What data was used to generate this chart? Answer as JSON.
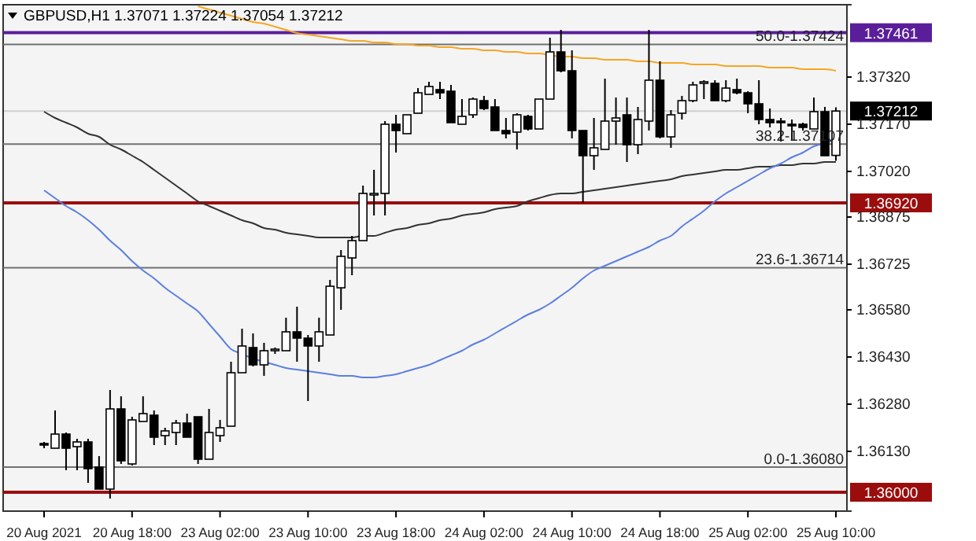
{
  "chart_data": {
    "type": "candlestick",
    "title": "GBPUSD,H1  1.37071 1.37224 1.37054 1.37212",
    "categories": [
      "20 Aug 2021",
      null,
      null,
      null,
      null,
      null,
      null,
      null,
      "20 Aug 18:00",
      null,
      null,
      null,
      null,
      null,
      null,
      null,
      "23 Aug 02:00",
      null,
      null,
      null,
      null,
      null,
      null,
      null,
      "23 Aug 10:00",
      null,
      null,
      null,
      null,
      null,
      null,
      null,
      "23 Aug 18:00",
      null,
      null,
      null,
      null,
      null,
      null,
      null,
      "24 Aug 02:00",
      null,
      null,
      null,
      null,
      null,
      null,
      null,
      "24 Aug 10:00",
      null,
      null,
      null,
      null,
      null,
      null,
      null,
      "24 Aug 18:00",
      null,
      null,
      null,
      null,
      null,
      null,
      null,
      "25 Aug 02:00",
      null,
      null,
      null,
      null,
      null,
      null,
      null,
      "25 Aug 10:00"
    ],
    "ohlc": [
      [
        1.36155,
        1.3616,
        1.3614,
        1.3615
      ],
      [
        1.3614,
        1.3626,
        1.3614,
        1.36185
      ],
      [
        1.36185,
        1.3619,
        1.3607,
        1.3614
      ],
      [
        1.36145,
        1.3617,
        1.3607,
        1.3616
      ],
      [
        1.3616,
        1.3617,
        1.3603,
        1.36075
      ],
      [
        1.3608,
        1.36115,
        1.3601,
        1.3601
      ],
      [
        1.3601,
        1.36325,
        1.3598,
        1.36265
      ],
      [
        1.36265,
        1.36305,
        1.3609,
        1.361
      ],
      [
        1.3609,
        1.3624,
        1.36085,
        1.3623
      ],
      [
        1.36225,
        1.36305,
        1.36225,
        1.3625
      ],
      [
        1.36245,
        1.3626,
        1.3615,
        1.36175
      ],
      [
        1.3618,
        1.36205,
        1.3615,
        1.36195
      ],
      [
        1.3619,
        1.3623,
        1.3615,
        1.3622
      ],
      [
        1.3622,
        1.3625,
        1.36175,
        1.36175
      ],
      [
        1.3624,
        1.3624,
        1.3609,
        1.36105
      ],
      [
        1.36105,
        1.36265,
        1.36105,
        1.3619
      ],
      [
        1.3618,
        1.3623,
        1.3616,
        1.36205
      ],
      [
        1.3621,
        1.36415,
        1.3621,
        1.3638
      ],
      [
        1.3638,
        1.3652,
        1.3638,
        1.36465
      ],
      [
        1.3646,
        1.36505,
        1.364,
        1.36405
      ],
      [
        1.36405,
        1.36475,
        1.3637,
        1.3645
      ],
      [
        1.3645,
        1.3646,
        1.3644,
        1.36455
      ],
      [
        1.3645,
        1.36555,
        1.3645,
        1.3651
      ],
      [
        1.3651,
        1.3659,
        1.36415,
        1.3649
      ],
      [
        1.3649,
        1.365,
        1.3629,
        1.36465
      ],
      [
        1.36465,
        1.36555,
        1.36415,
        1.3651
      ],
      [
        1.365,
        1.36675,
        1.365,
        1.36655
      ],
      [
        1.3665,
        1.3677,
        1.3658,
        1.3675
      ],
      [
        1.36745,
        1.36815,
        1.3669,
        1.368
      ],
      [
        1.368,
        1.36975,
        1.368,
        1.3695
      ],
      [
        1.36945,
        1.37025,
        1.3688,
        1.3695
      ],
      [
        1.3695,
        1.3718,
        1.3688,
        1.3717
      ],
      [
        1.3717,
        1.372,
        1.3708,
        1.3715
      ],
      [
        1.3714,
        1.372,
        1.3714,
        1.372
      ],
      [
        1.37205,
        1.37285,
        1.37205,
        1.3727
      ],
      [
        1.37265,
        1.37305,
        1.37265,
        1.3729
      ],
      [
        1.3728,
        1.37305,
        1.3725,
        1.3727
      ],
      [
        1.37275,
        1.37295,
        1.37175,
        1.37175
      ],
      [
        1.3717,
        1.3725,
        1.3717,
        1.37195
      ],
      [
        1.372,
        1.37255,
        1.3719,
        1.3725
      ],
      [
        1.37245,
        1.3726,
        1.37215,
        1.3722
      ],
      [
        1.37225,
        1.3725,
        1.3715,
        1.3715
      ],
      [
        1.3715,
        1.3719,
        1.37125,
        1.3714
      ],
      [
        1.37145,
        1.37205,
        1.3709,
        1.372
      ],
      [
        1.37195,
        1.372,
        1.3715,
        1.37155
      ],
      [
        1.37155,
        1.3725,
        1.37155,
        1.3725
      ],
      [
        1.3725,
        1.37445,
        1.3725,
        1.374
      ],
      [
        1.374,
        1.3747,
        1.37335,
        1.3734
      ],
      [
        1.3734,
        1.37405,
        1.37125,
        1.3715
      ],
      [
        1.3715,
        1.3715,
        1.3692,
        1.3707
      ],
      [
        1.3707,
        1.3719,
        1.37025,
        1.37095
      ],
      [
        1.3709,
        1.37315,
        1.3709,
        1.3718
      ],
      [
        1.3718,
        1.37255,
        1.37105,
        1.3719
      ],
      [
        1.372,
        1.37255,
        1.3705,
        1.37105
      ],
      [
        1.37105,
        1.37225,
        1.37075,
        1.37185
      ],
      [
        1.3718,
        1.3747,
        1.3715,
        1.3731
      ],
      [
        1.3731,
        1.3737,
        1.37125,
        1.3713
      ],
      [
        1.3713,
        1.37215,
        1.37095,
        1.372
      ],
      [
        1.37205,
        1.3726,
        1.37185,
        1.37245
      ],
      [
        1.37245,
        1.37305,
        1.3724,
        1.37295
      ],
      [
        1.373,
        1.3731,
        1.3725,
        1.37305
      ],
      [
        1.373,
        1.3731,
        1.37245,
        1.37245
      ],
      [
        1.37245,
        1.3731,
        1.3724,
        1.37285
      ],
      [
        1.3728,
        1.37315,
        1.37265,
        1.3727
      ],
      [
        1.3727,
        1.37275,
        1.37205,
        1.37235
      ],
      [
        1.37235,
        1.3731,
        1.3717,
        1.37185
      ],
      [
        1.37185,
        1.3722,
        1.3716,
        1.37175
      ],
      [
        1.3718,
        1.3719,
        1.37115,
        1.37175
      ],
      [
        1.3717,
        1.37185,
        1.3712,
        1.37165
      ],
      [
        1.3717,
        1.37175,
        1.3715,
        1.3716
      ],
      [
        1.37155,
        1.37255,
        1.37155,
        1.3721
      ],
      [
        1.3721,
        1.37225,
        1.3707,
        1.3707
      ],
      [
        1.37071,
        1.37224,
        1.37054,
        1.37212
      ]
    ],
    "series": [
      {
        "type": "line",
        "color": "#f5a623",
        "values": [
          null,
          null,
          null,
          null,
          null,
          null,
          null,
          null,
          null,
          null,
          null,
          null,
          null,
          null,
          1.37545,
          1.37535,
          1.37525,
          1.37515,
          1.37505,
          1.37495,
          1.3749,
          1.3748,
          1.3747,
          1.3746,
          1.37455,
          1.3745,
          1.37445,
          1.3744,
          1.37435,
          1.37435,
          1.3743,
          1.3743,
          1.37425,
          1.37425,
          1.3742,
          1.3742,
          1.37415,
          1.37415,
          1.3741,
          1.3741,
          1.37405,
          1.37405,
          1.374,
          1.374,
          1.37395,
          1.37395,
          1.3739,
          1.37385,
          1.37385,
          1.3738,
          1.3738,
          1.37375,
          1.37375,
          1.37375,
          1.3737,
          1.3737,
          1.37365,
          1.37365,
          1.37365,
          1.3736,
          1.3736,
          1.3736,
          1.37355,
          1.37355,
          1.37355,
          1.37355,
          1.3735,
          1.3735,
          1.3735,
          1.37345,
          1.37345,
          1.37345,
          1.3734
        ]
      },
      {
        "type": "line",
        "color": "#333333",
        "values": [
          1.3721,
          1.3719,
          1.37175,
          1.3716,
          1.3714,
          1.3713,
          1.37105,
          1.3709,
          1.3707,
          1.3705,
          1.37025,
          1.37,
          1.36975,
          1.3695,
          1.36925,
          1.3691,
          1.36895,
          1.3688,
          1.36865,
          1.36855,
          1.3684,
          1.36835,
          1.36825,
          1.3682,
          1.36815,
          1.3681,
          1.3681,
          1.3681,
          1.3681,
          1.36815,
          1.36815,
          1.36825,
          1.36835,
          1.3684,
          1.3685,
          1.36855,
          1.36865,
          1.3687,
          1.3688,
          1.36885,
          1.3689,
          1.369,
          1.36905,
          1.3691,
          1.36925,
          1.36935,
          1.36945,
          1.3695,
          1.3695,
          1.36955,
          1.3696,
          1.36965,
          1.3697,
          1.36975,
          1.3698,
          1.36985,
          1.3699,
          1.36995,
          1.37005,
          1.3701,
          1.37015,
          1.3702,
          1.37025,
          1.37025,
          1.3703,
          1.37035,
          1.37035,
          1.3704,
          1.3704,
          1.37045,
          1.37045,
          1.3705,
          1.3705
        ]
      },
      {
        "type": "line",
        "color": "#5b7fe0",
        "values": [
          1.3696,
          1.36935,
          1.3691,
          1.3689,
          1.36865,
          1.36835,
          1.368,
          1.3677,
          1.36735,
          1.36705,
          1.3668,
          1.3665,
          1.36625,
          1.366,
          1.36575,
          1.36535,
          1.36495,
          1.36455,
          1.3644,
          1.36425,
          1.36415,
          1.36405,
          1.36395,
          1.3639,
          1.36385,
          1.3638,
          1.36375,
          1.3637,
          1.3637,
          1.36365,
          1.36365,
          1.3637,
          1.36375,
          1.36385,
          1.36395,
          1.36405,
          1.3642,
          1.36435,
          1.3645,
          1.3647,
          1.36485,
          1.36505,
          1.36525,
          1.36545,
          1.36565,
          1.3658,
          1.366,
          1.36625,
          1.3665,
          1.3668,
          1.36705,
          1.3672,
          1.36735,
          1.3675,
          1.36765,
          1.3678,
          1.368,
          1.36815,
          1.36845,
          1.3687,
          1.36895,
          1.36925,
          1.3695,
          1.3697,
          1.3699,
          1.3701,
          1.3703,
          1.37045,
          1.37065,
          1.3708,
          1.371,
          1.3711,
          1.3712
        ]
      }
    ],
    "ylim": [
      1.3594,
      1.3755
    ],
    "yticks": [
      {
        "value": 1.3613,
        "label": "1.36130"
      },
      {
        "value": 1.3628,
        "label": "1.36280"
      },
      {
        "value": 1.3643,
        "label": "1.36430"
      },
      {
        "value": 1.3658,
        "label": "1.36580"
      },
      {
        "value": 1.36725,
        "label": "1.36725"
      },
      {
        "value": 1.36875,
        "label": "1.36875"
      },
      {
        "value": 1.3702,
        "label": "1.37020"
      },
      {
        "value": 1.3717,
        "label": "1.37170"
      },
      {
        "value": 1.3732,
        "label": "1.37320"
      }
    ],
    "annotations": [
      {
        "text": "50.0-1.37424",
        "y": 1.37424
      },
      {
        "text": "38.2-1.37107",
        "y": 1.37107
      },
      {
        "text": "23.6-1.36714",
        "y": 1.36714
      },
      {
        "text": "0.0-1.36080",
        "y": 1.3608
      }
    ],
    "ref_lines": [
      {
        "axis": "y",
        "value": 1.37461,
        "label": "1.37461",
        "color": "#5a1e9a"
      },
      {
        "axis": "y",
        "value": 1.37212,
        "label": "1.37212",
        "color": "#000000"
      },
      {
        "axis": "y",
        "value": 1.3692,
        "label": "1.36920",
        "color": "#9b0d0d"
      },
      {
        "axis": "y",
        "value": 1.36,
        "label": "1.36000",
        "color": "#9b0d0d"
      },
      {
        "axis": "y",
        "value": 1.37424,
        "color": "#707070"
      },
      {
        "axis": "y",
        "value": 1.37107,
        "color": "#707070"
      },
      {
        "axis": "y",
        "value": 1.36714,
        "color": "#707070"
      },
      {
        "axis": "y",
        "value": 1.3608,
        "color": "#707070"
      }
    ]
  }
}
